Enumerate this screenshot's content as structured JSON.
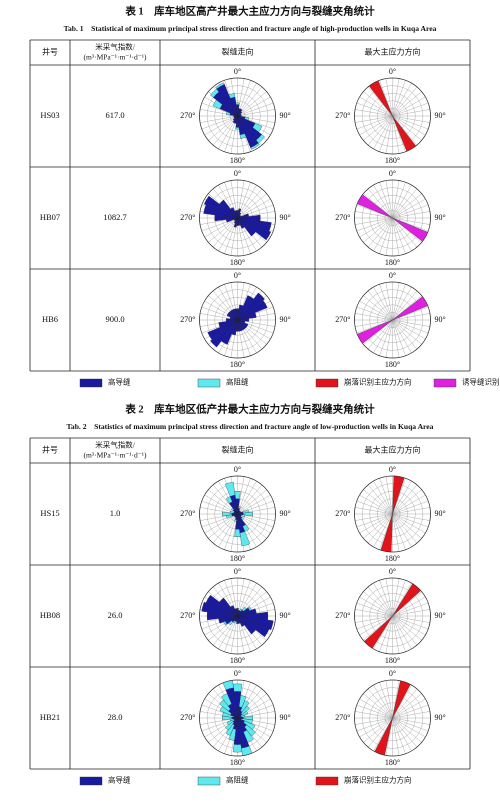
{
  "tables": [
    {
      "caption_cn": "表 1　库车地区高产井最大主应力方向与裂缝夹角统计",
      "caption_en": "Tab. 1　Statistical of maximum principal stress direction and fracture angle of high-production wells in Kuqa Area",
      "headers": [
        "井号",
        [
          "米采气指数/",
          "(m³·MPa⁻¹·m⁻¹·d⁻¹)"
        ],
        "裂缝走向",
        "最大主应力方向"
      ],
      "rose_labels": [
        "0°",
        "90°",
        "180°",
        "270°"
      ],
      "rows": [
        {
          "well": "HS03",
          "index": "617.0",
          "fracture": {
            "conductive": [
              0.3,
              0.2,
              0.2,
              0.15,
              0.1,
              0.1,
              0.1,
              0.2,
              0.5,
              0.8,
              0.9,
              0.5
            ],
            "resistive": [
              0.35,
              0.2,
              0.1,
              0.05,
              0.05,
              0.05,
              0.05,
              0.3,
              0.7,
              0.9,
              0.95,
              0.6
            ]
          },
          "stress": {
            "azimuth": 150,
            "color": "#e0141a"
          }
        },
        {
          "well": "HB07",
          "index": "1082.7",
          "fracture": {
            "conductive": [
              0.2,
              0.25,
              0.15,
              0.1,
              0.1,
              0.3,
              0.6,
              0.9,
              0.95,
              0.6,
              0.3,
              0.2
            ],
            "resistive": [
              0.1,
              0.1,
              0.05,
              0.05,
              0.05,
              0.1,
              0.2,
              0.3,
              0.3,
              0.2,
              0.1,
              0.05
            ]
          },
          "stress": {
            "azimuth": 120,
            "color": "#e020e0"
          }
        },
        {
          "well": "HB6",
          "index": "900.0",
          "fracture": {
            "conductive": [
              0.3,
              0.4,
              0.7,
              0.9,
              0.85,
              0.5,
              0.3,
              0.2,
              0.3,
              0.3,
              0.3,
              0.3
            ],
            "resistive": [
              0.1,
              0.1,
              0.2,
              0.3,
              0.3,
              0.2,
              0.1,
              0.05,
              0.1,
              0.1,
              0.1,
              0.1
            ]
          },
          "stress": {
            "azimuth": 60,
            "color": "#e020e0"
          }
        }
      ],
      "legend": [
        {
          "label": "高导缝",
          "color": "#1a1aa0"
        },
        {
          "label": "高阻缝",
          "color": "#5ee8f0"
        },
        {
          "label": "崩落识别主应力方向",
          "color": "#e0141a"
        },
        {
          "label": "诱导缝识别主应力方向",
          "color": "#e020e0"
        }
      ]
    },
    {
      "caption_cn": "表 2　库车地区低产井最大主应力方向与裂缝夹角统计",
      "caption_en": "Tab. 2　Statistics of maximum principal stress direction and fracture angle of low-production wells in Kuqa Area",
      "headers": [
        "井号",
        [
          "米采气指数/",
          "(m³·MPa⁻¹·m⁻¹·d⁻¹)"
        ],
        "裂缝走向",
        "最大主应力方向"
      ],
      "rose_labels": [
        "0°",
        "90°",
        "180°",
        "270°"
      ],
      "rows": [
        {
          "well": "HS15",
          "index": "1.0",
          "fracture": {
            "conductive": [
              0.4,
              0.15,
              0.1,
              0.1,
              0.1,
              0.15,
              0.15,
              0.1,
              0.1,
              0.15,
              0.35,
              0.5
            ],
            "resistive": [
              0.6,
              0.2,
              0.1,
              0.05,
              0.05,
              0.3,
              0.4,
              0.2,
              0.1,
              0.2,
              0.5,
              0.85
            ]
          },
          "stress": {
            "azimuth": 10,
            "color": "#e0141a"
          }
        },
        {
          "well": "HB08",
          "index": "26.0",
          "fracture": {
            "conductive": [
              0.2,
              0.15,
              0.15,
              0.2,
              0.35,
              0.5,
              0.8,
              0.95,
              0.9,
              0.6,
              0.3,
              0.2
            ],
            "resistive": [
              0.1,
              0.1,
              0.2,
              0.3,
              0.4,
              0.5,
              0.5,
              0.6,
              0.5,
              0.3,
              0.2,
              0.1
            ]
          },
          "stress": {
            "azimuth": 40,
            "color": "#e0141a"
          }
        },
        {
          "well": "HB21",
          "index": "28.0",
          "fracture": {
            "conductive": [
              0.7,
              0.3,
              0.2,
              0.15,
              0.1,
              0.1,
              0.15,
              0.1,
              0.2,
              0.3,
              0.4,
              0.8
            ],
            "resistive": [
              0.9,
              0.6,
              0.5,
              0.4,
              0.3,
              0.2,
              0.4,
              0.4,
              0.5,
              0.6,
              0.7,
              1.0
            ]
          },
          "stress": {
            "azimuth": 20,
            "color": "#e0141a"
          }
        }
      ],
      "legend": [
        {
          "label": "高导缝",
          "color": "#1a1aa0"
        },
        {
          "label": "高阻缝",
          "color": "#5ee8f0"
        },
        {
          "label": "崩落识别主应力方向",
          "color": "#e0141a"
        }
      ]
    }
  ]
}
